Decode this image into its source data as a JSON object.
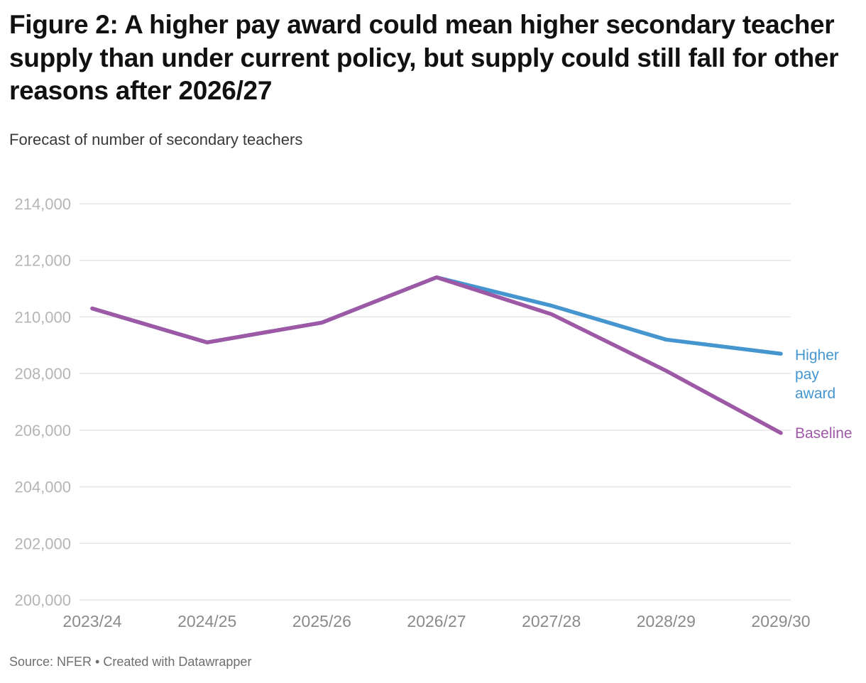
{
  "header": {
    "title": "Figure 2: A higher pay award could mean higher secondary teacher supply than under current policy, but supply could still fall for other reasons after 2026/27",
    "subtitle": "Forecast of number of secondary teachers"
  },
  "footer": {
    "source": "Source: NFER • Created with Datawrapper"
  },
  "colors": {
    "higher_pay": "#4596cf",
    "baseline": "#9d58a6",
    "grid": "#e5e5e5",
    "ytick": "#b5b5b5",
    "xtick": "#8a8a8a",
    "scrollbar": "#2e6fd9"
  },
  "chart_data": {
    "type": "line",
    "title": "Figure 2: A higher pay award could mean higher secondary teacher supply than under current policy, but supply could still fall for other reasons after 2026/27",
    "subtitle": "Forecast of number of secondary teachers",
    "categories": [
      "2023/24",
      "2024/25",
      "2025/26",
      "2026/27",
      "2027/28",
      "2028/29",
      "2029/30"
    ],
    "series": [
      {
        "name": "Higher pay award",
        "color_key": "higher_pay",
        "values": [
          210300,
          209100,
          209800,
          211400,
          210400,
          209200,
          208700
        ]
      },
      {
        "name": "Baseline",
        "color_key": "baseline",
        "values": [
          210300,
          209100,
          209800,
          211400,
          210100,
          208100,
          205900
        ]
      }
    ],
    "xlabel": "",
    "ylabel": "",
    "ylim": [
      200000,
      214000
    ],
    "yticks": [
      200000,
      202000,
      204000,
      206000,
      208000,
      210000,
      212000,
      214000
    ],
    "ytick_labels": [
      "200,000",
      "202,000",
      "204,000",
      "206,000",
      "208,000",
      "210,000",
      "212,000",
      "214,000"
    ],
    "grid": true,
    "legend_position": "line-end-labels"
  }
}
